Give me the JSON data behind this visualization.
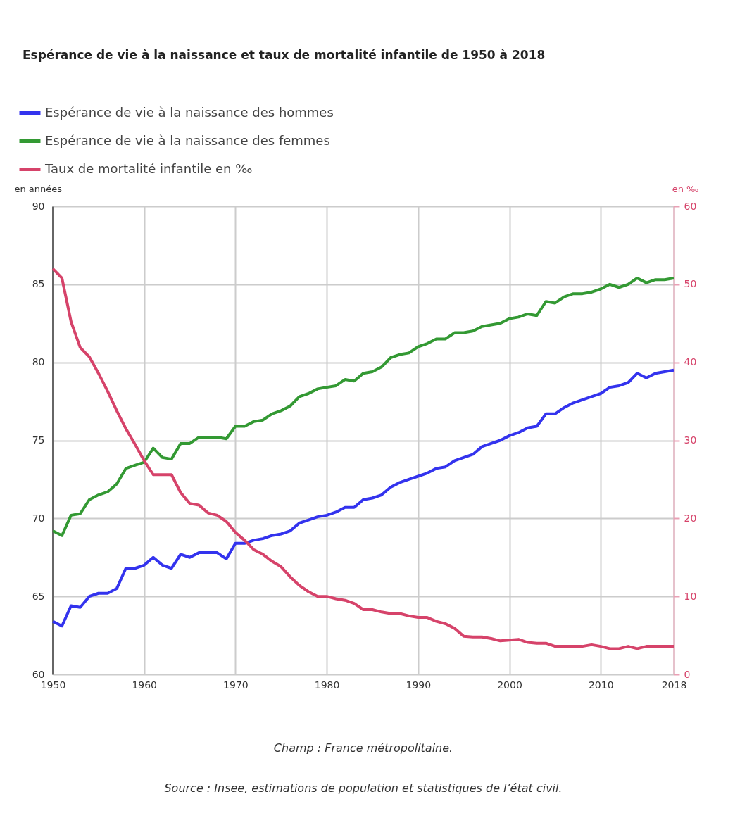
{
  "chart_data": {
    "type": "line",
    "title": "Espérance de vie à la naissance et taux de mortalité infantile de 1950 à 2018",
    "ylabel": "en années",
    "y2label": "en ‰",
    "x": [
      1950,
      1951,
      1952,
      1953,
      1954,
      1955,
      1956,
      1957,
      1958,
      1959,
      1960,
      1961,
      1962,
      1963,
      1964,
      1965,
      1966,
      1967,
      1968,
      1969,
      1970,
      1971,
      1972,
      1973,
      1974,
      1975,
      1976,
      1977,
      1978,
      1979,
      1980,
      1981,
      1982,
      1983,
      1984,
      1985,
      1986,
      1987,
      1988,
      1989,
      1990,
      1991,
      1992,
      1993,
      1994,
      1995,
      1996,
      1997,
      1998,
      1999,
      2000,
      2001,
      2002,
      2003,
      2004,
      2005,
      2006,
      2007,
      2008,
      2009,
      2010,
      2011,
      2012,
      2013,
      2014,
      2015,
      2016,
      2017,
      2018
    ],
    "series": [
      {
        "name": "Espérance de vie à la naissance des hommes",
        "color": "#3333ee",
        "values": [
          63.4,
          63.1,
          64.4,
          64.3,
          65.0,
          65.2,
          65.2,
          65.5,
          66.8,
          66.8,
          67.0,
          67.5,
          67.0,
          66.8,
          67.7,
          67.5,
          67.8,
          67.8,
          67.8,
          67.4,
          68.4,
          68.4,
          68.6,
          68.7,
          68.9,
          69.0,
          69.2,
          69.7,
          69.9,
          70.1,
          70.2,
          70.4,
          70.7,
          70.7,
          71.2,
          71.3,
          71.5,
          72.0,
          72.3,
          72.5,
          72.7,
          72.9,
          73.2,
          73.3,
          73.7,
          73.9,
          74.1,
          74.6,
          74.8,
          75.0,
          75.3,
          75.5,
          75.8,
          75.9,
          76.7,
          76.7,
          77.1,
          77.4,
          77.6,
          77.8,
          78.0,
          78.4,
          78.5,
          78.7,
          79.3,
          79.0,
          79.3,
          79.4,
          79.5
        ]
      },
      {
        "name": "Espérance de vie à la naissance des femmes",
        "color": "#339933",
        "values": [
          69.2,
          68.9,
          70.2,
          70.3,
          71.2,
          71.5,
          71.7,
          72.2,
          73.2,
          73.4,
          73.6,
          74.5,
          73.9,
          73.8,
          74.8,
          74.8,
          75.2,
          75.2,
          75.2,
          75.1,
          75.9,
          75.9,
          76.2,
          76.3,
          76.7,
          76.9,
          77.2,
          77.8,
          78.0,
          78.3,
          78.4,
          78.5,
          78.9,
          78.8,
          79.3,
          79.4,
          79.7,
          80.3,
          80.5,
          80.6,
          81.0,
          81.2,
          81.5,
          81.5,
          81.9,
          81.9,
          82.0,
          82.3,
          82.4,
          82.5,
          82.8,
          82.9,
          83.1,
          83.0,
          83.9,
          83.8,
          84.2,
          84.4,
          84.4,
          84.5,
          84.7,
          85.0,
          84.8,
          85.0,
          85.4,
          85.1,
          85.3,
          85.3,
          85.4
        ]
      },
      {
        "name": "Taux de mortalité infantile en ‰",
        "color": "#d6436a",
        "axis": "y2",
        "values": [
          52.0,
          50.8,
          45.2,
          41.9,
          40.7,
          38.6,
          36.3,
          33.8,
          31.5,
          29.5,
          27.4,
          25.6,
          25.6,
          25.6,
          23.3,
          21.9,
          21.7,
          20.7,
          20.4,
          19.6,
          18.2,
          17.2,
          16.0,
          15.4,
          14.5,
          13.8,
          12.5,
          11.4,
          10.6,
          10.0,
          10.0,
          9.7,
          9.5,
          9.1,
          8.3,
          8.3,
          8.0,
          7.8,
          7.8,
          7.5,
          7.3,
          7.3,
          6.8,
          6.5,
          5.9,
          4.9,
          4.8,
          4.8,
          4.6,
          4.3,
          4.4,
          4.5,
          4.1,
          4.0,
          4.0,
          3.6,
          3.6,
          3.6,
          3.6,
          3.8,
          3.6,
          3.3,
          3.3,
          3.6,
          3.3,
          3.6,
          3.6,
          3.6,
          3.6
        ]
      }
    ],
    "xlim": [
      1950,
      2018
    ],
    "xticks": [
      1950,
      1960,
      1970,
      1980,
      1990,
      2000,
      2010,
      2018
    ],
    "ylim": [
      60,
      90
    ],
    "yticks": [
      60,
      65,
      70,
      75,
      80,
      85,
      90
    ],
    "y2lim": [
      0,
      60
    ],
    "y2ticks": [
      0,
      10,
      20,
      30,
      40,
      50,
      60
    ],
    "grid": true,
    "legend": "top left",
    "marker": "none",
    "line_style": "solid",
    "annotations": [
      "Champ : France métropolitaine.",
      "Source : Insee, estimations de population et statistiques de l’état civil."
    ]
  }
}
